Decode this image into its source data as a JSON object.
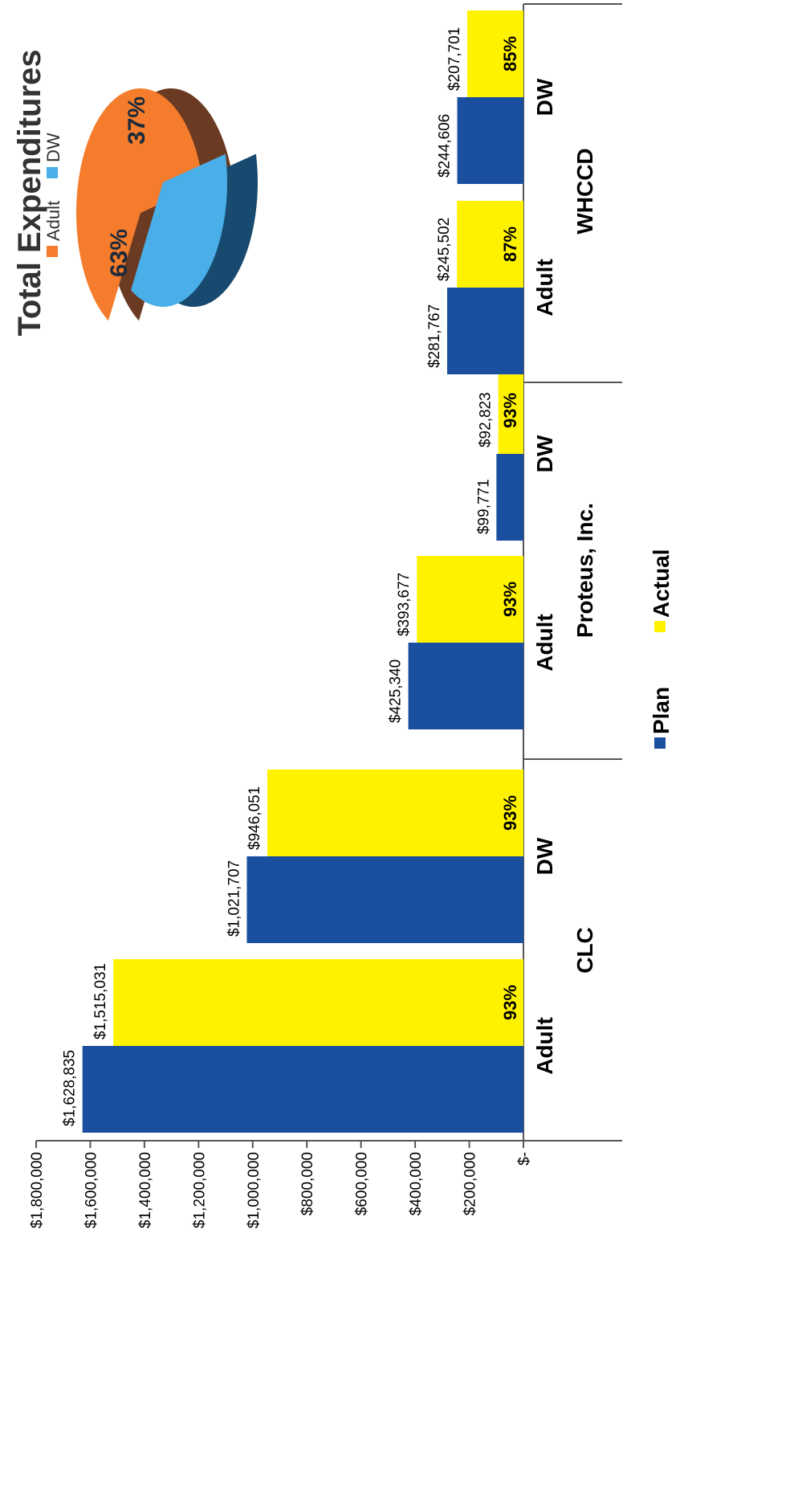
{
  "chart_data": [
    {
      "type": "bar",
      "orientation": "rotated-90",
      "y_tick_labels": [
        "$-",
        "$200,000",
        "$400,000",
        "$600,000",
        "$800,000",
        "$1,000,000",
        "$1,200,000",
        "$1,400,000",
        "$1,600,000",
        "$1,800,000"
      ],
      "ylim": [
        0,
        1800000
      ],
      "groups": [
        "CLC",
        "Proteus, Inc.",
        "WHCCD"
      ],
      "categories": [
        "Adult",
        "DW",
        "Adult",
        "DW",
        "Adult",
        "DW"
      ],
      "category_group": [
        0,
        0,
        1,
        1,
        2,
        2
      ],
      "series": [
        {
          "name": "Plan",
          "color": "#1a4fa0",
          "values": [
            1628835,
            1021707,
            425340,
            99771,
            281767,
            244606
          ],
          "labels": [
            "$1,628,835",
            "$1,021,707",
            "$425,340",
            "$99,771",
            "$281,767",
            "$244,606"
          ]
        },
        {
          "name": "Actual",
          "color": "#fff200",
          "values": [
            1515031,
            946051,
            393677,
            92823,
            245502,
            207701
          ],
          "labels": [
            "$1,515,031",
            "$946,051",
            "$393,677",
            "$92,823",
            "$245,502",
            "$207,701"
          ],
          "percent_labels": [
            "93%",
            "93%",
            "93%",
            "93%",
            "87%",
            "85%"
          ]
        }
      ],
      "legend": {
        "position": "bottom",
        "items": [
          "Plan",
          "Actual"
        ]
      }
    },
    {
      "type": "pie",
      "title": "Total Expenditures",
      "labels": [
        "Adult",
        "DW"
      ],
      "values": [
        63,
        37
      ],
      "value_labels": [
        "63%",
        "37%"
      ],
      "colors": [
        "#f47c2c",
        "#4aaee8"
      ],
      "legend": {
        "position": "top"
      }
    }
  ]
}
